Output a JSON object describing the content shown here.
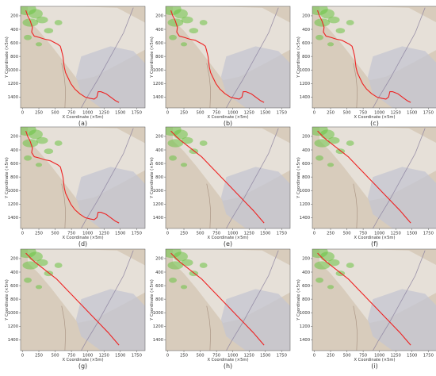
{
  "chart_data": [
    {
      "type": "line",
      "caption": "(a)",
      "xlabel": "X Coordinate (×5m)",
      "ylabel": "Y Coordinate (×5m)",
      "xticks": [
        0,
        250,
        500,
        750,
        1000,
        1250,
        1500,
        1750
      ],
      "yticks": [
        200,
        400,
        600,
        800,
        1000,
        1200,
        1400
      ],
      "xlim": [
        -30,
        1880
      ],
      "ylim": [
        1560,
        60
      ],
      "y_inverted": true,
      "series": [
        {
          "color": "#ee2222",
          "x": [
            50,
            75,
            120,
            150,
            140,
            180,
            260,
            340,
            420,
            500,
            540,
            580,
            600,
            620,
            630,
            640,
            660,
            690,
            740,
            800,
            880,
            960,
            1040,
            1100,
            1140,
            1160,
            1200,
            1280,
            1350,
            1420,
            1480
          ],
          "y": [
            120,
            190,
            280,
            370,
            440,
            500,
            520,
            545,
            560,
            600,
            620,
            650,
            720,
            800,
            880,
            960,
            1040,
            1100,
            1200,
            1280,
            1350,
            1400,
            1420,
            1430,
            1400,
            1320,
            1320,
            1350,
            1400,
            1450,
            1480
          ]
        }
      ]
    },
    {
      "type": "line",
      "caption": "(b)",
      "xlabel": "X Coordinate (×5m)",
      "ylabel": "Y Coordinate (×5m)",
      "xticks": [
        0,
        250,
        500,
        750,
        1000,
        1250,
        1500,
        1750
      ],
      "yticks": [
        200,
        400,
        600,
        800,
        1000,
        1200,
        1400
      ],
      "xlim": [
        -30,
        1880
      ],
      "ylim": [
        1560,
        60
      ],
      "y_inverted": true,
      "series": [
        {
          "color": "#ee2222",
          "x": [
            50,
            75,
            120,
            150,
            140,
            180,
            260,
            340,
            420,
            500,
            540,
            580,
            600,
            620,
            630,
            640,
            660,
            690,
            740,
            800,
            880,
            960,
            1040,
            1100,
            1140,
            1160,
            1200,
            1280,
            1350,
            1420,
            1480
          ],
          "y": [
            120,
            190,
            280,
            370,
            440,
            500,
            520,
            545,
            560,
            600,
            620,
            650,
            720,
            800,
            880,
            960,
            1040,
            1100,
            1200,
            1280,
            1350,
            1400,
            1420,
            1430,
            1400,
            1320,
            1320,
            1350,
            1400,
            1450,
            1480
          ]
        }
      ]
    },
    {
      "type": "line",
      "caption": "(c)",
      "xlabel": "X Coordinate (×5m)",
      "ylabel": "Y Coordinate (×5m)",
      "xticks": [
        0,
        250,
        500,
        750,
        1000,
        1250,
        1500,
        1750
      ],
      "yticks": [
        200,
        400,
        600,
        800,
        1000,
        1200,
        1400
      ],
      "xlim": [
        -30,
        1880
      ],
      "ylim": [
        1560,
        60
      ],
      "y_inverted": true,
      "series": [
        {
          "color": "#ee2222",
          "x": [
            50,
            75,
            120,
            150,
            140,
            180,
            260,
            340,
            420,
            500,
            540,
            580,
            600,
            620,
            630,
            640,
            660,
            690,
            740,
            800,
            880,
            960,
            1040,
            1100,
            1140,
            1160,
            1200,
            1280,
            1350,
            1420,
            1480
          ],
          "y": [
            120,
            190,
            280,
            370,
            440,
            500,
            520,
            545,
            560,
            600,
            620,
            650,
            720,
            800,
            880,
            960,
            1040,
            1100,
            1200,
            1280,
            1350,
            1400,
            1420,
            1430,
            1400,
            1320,
            1320,
            1350,
            1400,
            1450,
            1480
          ]
        }
      ]
    },
    {
      "type": "line",
      "caption": "(d)",
      "xlabel": "X Coordinate (×5m)",
      "ylabel": "Y Coordinate (×5m)",
      "xticks": [
        0,
        250,
        500,
        750,
        1000,
        1250,
        1500,
        1750
      ],
      "yticks": [
        200,
        400,
        600,
        800,
        1000,
        1200,
        1400
      ],
      "xlim": [
        -30,
        1880
      ],
      "ylim": [
        1560,
        60
      ],
      "y_inverted": true,
      "series": [
        {
          "color": "#ee2222",
          "x": [
            50,
            75,
            120,
            150,
            140,
            180,
            260,
            340,
            420,
            500,
            540,
            580,
            600,
            620,
            630,
            640,
            660,
            690,
            740,
            800,
            880,
            960,
            1040,
            1100,
            1140,
            1160,
            1200,
            1280,
            1350,
            1420,
            1480
          ],
          "y": [
            120,
            190,
            280,
            370,
            440,
            500,
            520,
            545,
            560,
            600,
            620,
            650,
            720,
            800,
            880,
            960,
            1040,
            1100,
            1200,
            1280,
            1350,
            1400,
            1420,
            1430,
            1400,
            1320,
            1320,
            1350,
            1400,
            1450,
            1480
          ]
        }
      ]
    },
    {
      "type": "line",
      "caption": "(e)",
      "xlabel": "X Coordinate (×5m)",
      "ylabel": "Y Coordinate (×5m)",
      "xticks": [
        0,
        250,
        500,
        750,
        1000,
        1250,
        1500,
        1750
      ],
      "yticks": [
        200,
        400,
        600,
        800,
        1000,
        1200,
        1400
      ],
      "xlim": [
        -30,
        1880
      ],
      "ylim": [
        1560,
        60
      ],
      "y_inverted": true,
      "series": [
        {
          "color": "#ee2222",
          "x": [
            50,
            90,
            140,
            200,
            280,
            360,
            440,
            520,
            600,
            680,
            760,
            840,
            920,
            1000,
            1080,
            1160,
            1240,
            1320,
            1400,
            1480
          ],
          "y": [
            120,
            160,
            210,
            260,
            320,
            380,
            440,
            500,
            580,
            660,
            740,
            820,
            900,
            980,
            1060,
            1140,
            1220,
            1300,
            1390,
            1480
          ]
        }
      ]
    },
    {
      "type": "line",
      "caption": "(f)",
      "xlabel": "X Coordinate (×5m)",
      "ylabel": "Y Coordinate (×5m)",
      "xticks": [
        0,
        250,
        500,
        750,
        1000,
        1250,
        1500,
        1750
      ],
      "yticks": [
        200,
        400,
        600,
        800,
        1000,
        1200,
        1400
      ],
      "xlim": [
        -30,
        1880
      ],
      "ylim": [
        1560,
        60
      ],
      "y_inverted": true,
      "series": [
        {
          "color": "#ee2222",
          "x": [
            50,
            90,
            140,
            200,
            280,
            360,
            440,
            520,
            600,
            680,
            760,
            840,
            920,
            1000,
            1080,
            1160,
            1240,
            1320,
            1400,
            1480
          ],
          "y": [
            120,
            160,
            210,
            260,
            320,
            380,
            440,
            500,
            580,
            660,
            740,
            820,
            900,
            980,
            1060,
            1140,
            1220,
            1300,
            1390,
            1480
          ]
        }
      ]
    },
    {
      "type": "line",
      "caption": "(g)",
      "xlabel": "X Coordinate (×5m)",
      "ylabel": "Y Coordinate (×5m)",
      "xticks": [
        0,
        250,
        500,
        750,
        1000,
        1250,
        1500,
        1750
      ],
      "yticks": [
        200,
        400,
        600,
        800,
        1000,
        1200,
        1400
      ],
      "xlim": [
        -30,
        1880
      ],
      "ylim": [
        1560,
        60
      ],
      "y_inverted": true,
      "series": [
        {
          "color": "#ee2222",
          "x": [
            50,
            90,
            140,
            200,
            280,
            360,
            440,
            520,
            600,
            680,
            760,
            840,
            920,
            1000,
            1080,
            1160,
            1240,
            1320,
            1400,
            1480
          ],
          "y": [
            120,
            160,
            210,
            260,
            320,
            380,
            440,
            500,
            580,
            660,
            740,
            820,
            900,
            980,
            1060,
            1140,
            1220,
            1300,
            1390,
            1480
          ]
        }
      ]
    },
    {
      "type": "line",
      "caption": "(h)",
      "xlabel": "X Coordinate (×5m)",
      "ylabel": "Y Coordinate (×5m)",
      "xticks": [
        0,
        250,
        500,
        750,
        1000,
        1250,
        1500,
        1750
      ],
      "yticks": [
        200,
        400,
        600,
        800,
        1000,
        1200,
        1400
      ],
      "xlim": [
        -30,
        1880
      ],
      "ylim": [
        1560,
        60
      ],
      "y_inverted": true,
      "series": [
        {
          "color": "#ee2222",
          "x": [
            50,
            90,
            140,
            200,
            280,
            360,
            440,
            520,
            600,
            680,
            760,
            840,
            920,
            1000,
            1080,
            1160,
            1240,
            1320,
            1400,
            1480
          ],
          "y": [
            120,
            160,
            210,
            260,
            320,
            380,
            440,
            500,
            580,
            660,
            740,
            820,
            900,
            980,
            1060,
            1140,
            1220,
            1300,
            1390,
            1480
          ]
        }
      ]
    },
    {
      "type": "line",
      "caption": "(i)",
      "xlabel": "X Coordinate (×5m)",
      "ylabel": "Y Coordinate (×5m)",
      "xticks": [
        0,
        250,
        500,
        750,
        1000,
        1250,
        1500,
        1750
      ],
      "yticks": [
        200,
        400,
        600,
        800,
        1000,
        1200,
        1400
      ],
      "xlim": [
        -30,
        1880
      ],
      "ylim": [
        1560,
        60
      ],
      "y_inverted": true,
      "series": [
        {
          "color": "#ee2222",
          "x": [
            50,
            90,
            140,
            200,
            280,
            360,
            440,
            520,
            600,
            680,
            760,
            840,
            920,
            1000,
            1080,
            1160,
            1240,
            1320,
            1400,
            1480
          ],
          "y": [
            120,
            160,
            210,
            260,
            320,
            380,
            440,
            500,
            580,
            660,
            740,
            820,
            900,
            980,
            1060,
            1140,
            1220,
            1300,
            1390,
            1480
          ]
        }
      ]
    }
  ],
  "colors": {
    "background_terrain": "#d8ccbc",
    "light_terrain": "#e8e2da",
    "blue_grey_zone": "#c4c6d2",
    "vegetation": "#6cc244",
    "path": "#ee2222",
    "road": "#8a7f9e"
  }
}
